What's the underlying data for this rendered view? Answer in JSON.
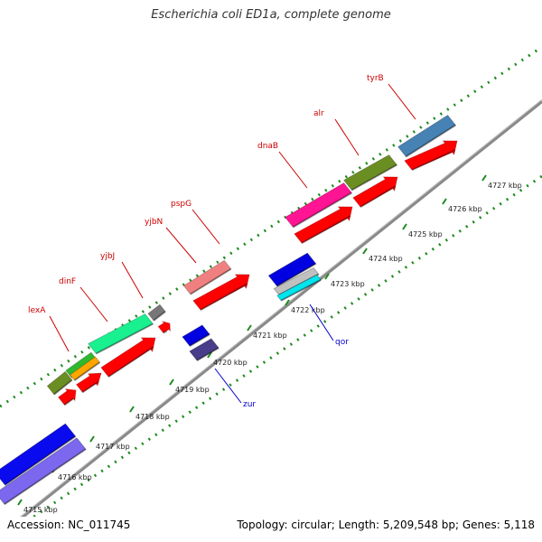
{
  "title": "Escherichia coli ED1a, complete genome",
  "footer": {
    "accession": "Accession: NC_011745",
    "topology": "Topology: circular; Length: 5,209,548 bp; Genes: 5,118"
  },
  "colors": {
    "backbone": "#8a8a8a",
    "dotted_track": "#1e8a1e",
    "forward_label": "#cc0000",
    "reverse_label": "#0000cc",
    "cds": "#ff0000"
  },
  "ticks": [
    "4715 kbp",
    "4716 kbp",
    "4717 kbp",
    "4718 kbp",
    "4719 kbp",
    "4720 kbp",
    "4721 kbp",
    "4722 kbp",
    "4723 kbp",
    "4724 kbp",
    "4725 kbp",
    "4726 kbp",
    "4727 kbp"
  ],
  "gene_labels": {
    "forward": [
      "lexA",
      "dinF",
      "yjbJ",
      "yjbN",
      "pspG",
      "dnaB",
      "alr",
      "tyrB"
    ],
    "reverse": [
      "zur",
      "qor"
    ]
  }
}
